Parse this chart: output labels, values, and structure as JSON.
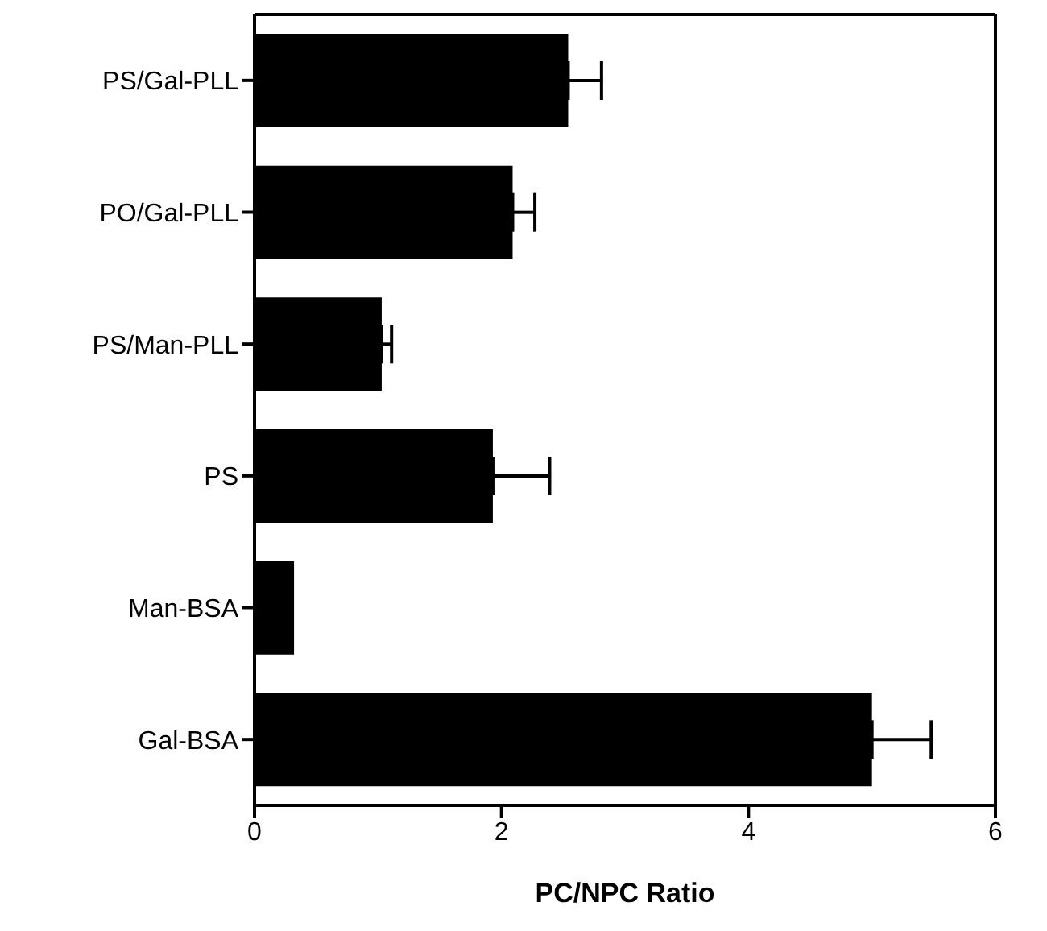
{
  "chart_data": {
    "type": "bar",
    "orientation": "horizontal",
    "xlabel": "PC/NPC  Ratio",
    "categories": [
      "PS/Gal-PLL",
      "PO/Gal-PLL",
      "PS/Man-PLL",
      "PS",
      "Man-BSA",
      "Gal-BSA"
    ],
    "values": [
      2.54,
      2.09,
      1.03,
      1.93,
      0.32,
      5.0
    ],
    "errors": [
      [
        2.54,
        2.81
      ],
      [
        2.09,
        2.27
      ],
      [
        1.03,
        1.11
      ],
      [
        1.93,
        2.39
      ],
      null,
      [
        5.0,
        5.48
      ]
    ],
    "color": "#000000",
    "xlim": [
      0,
      6
    ],
    "xticks": [
      0,
      2,
      4,
      6
    ],
    "grid": false
  }
}
